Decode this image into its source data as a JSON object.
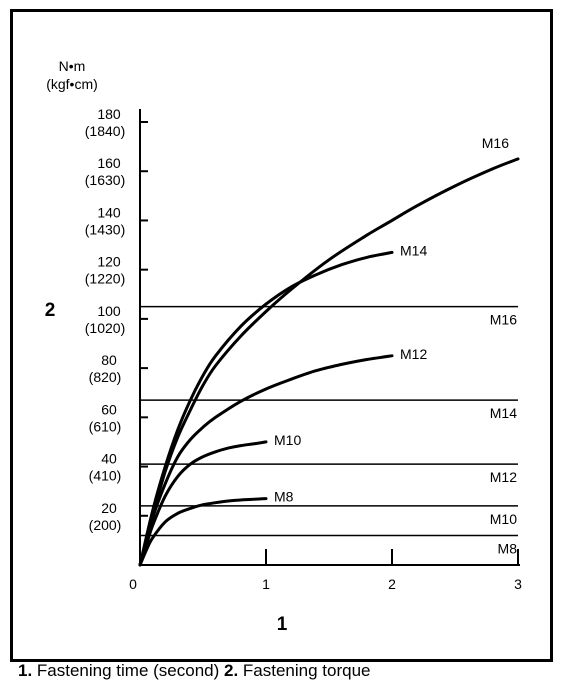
{
  "chart_data": {
    "type": "line",
    "y_unit": "N•m",
    "y_unit_alt": "(kgf•cm)",
    "y_axis_marker": "2",
    "x_axis_marker": "1",
    "xlim": [
      0,
      3
    ],
    "ylim": [
      0,
      180
    ],
    "x_ticks": [
      {
        "value": 0,
        "label": "0"
      },
      {
        "value": 1,
        "label": "1"
      },
      {
        "value": 2,
        "label": "2"
      },
      {
        "value": 3,
        "label": "3"
      }
    ],
    "y_ticks": [
      {
        "value": 20,
        "label": "20",
        "alt": "(200)"
      },
      {
        "value": 40,
        "label": "40",
        "alt": "(410)"
      },
      {
        "value": 60,
        "label": "60",
        "alt": "(610)"
      },
      {
        "value": 80,
        "label": "80",
        "alt": "(820)"
      },
      {
        "value": 100,
        "label": "100",
        "alt": "(1020)"
      },
      {
        "value": 120,
        "label": "120",
        "alt": "(1220)"
      },
      {
        "value": 140,
        "label": "140",
        "alt": "(1430)"
      },
      {
        "value": 160,
        "label": "160",
        "alt": "(1630)"
      },
      {
        "value": 180,
        "label": "180",
        "alt": "(1840)"
      }
    ],
    "series": [
      {
        "name": "M8",
        "x": [
          0,
          0.05,
          0.1,
          0.2,
          0.3,
          0.4,
          0.5,
          0.6,
          0.7,
          0.8,
          0.9,
          1.0
        ],
        "y": [
          0,
          6,
          11,
          17.5,
          21,
          23,
          24.5,
          25.3,
          26,
          26.4,
          26.7,
          27
        ]
      },
      {
        "name": "M10",
        "x": [
          0,
          0.05,
          0.1,
          0.2,
          0.3,
          0.4,
          0.5,
          0.6,
          0.7,
          0.8,
          0.9,
          1.0
        ],
        "y": [
          0,
          8,
          16,
          28,
          36,
          41,
          44,
          46,
          47.5,
          48.5,
          49.2,
          50
        ]
      },
      {
        "name": "M12",
        "x": [
          0,
          0.1,
          0.2,
          0.3,
          0.4,
          0.5,
          0.6,
          0.8,
          1.0,
          1.2,
          1.4,
          1.6,
          1.8,
          2.0
        ],
        "y": [
          0,
          19,
          33,
          44,
          51,
          56,
          60,
          66.5,
          71.5,
          75.5,
          79,
          81.5,
          83.5,
          85
        ]
      },
      {
        "name": "M14",
        "x": [
          0,
          0.1,
          0.2,
          0.3,
          0.4,
          0.5,
          0.6,
          0.8,
          1.0,
          1.2,
          1.4,
          1.6,
          1.8,
          2.0
        ],
        "y": [
          0,
          22,
          40,
          55,
          67,
          77,
          85,
          97,
          106,
          113,
          118,
          122,
          125,
          127
        ]
      },
      {
        "name": "M16",
        "x": [
          0,
          0.1,
          0.2,
          0.3,
          0.4,
          0.5,
          0.6,
          0.8,
          1.0,
          1.2,
          1.5,
          1.8,
          2.0,
          2.2,
          2.5,
          2.8,
          3.0
        ],
        "y": [
          0,
          20,
          38,
          52,
          63,
          73,
          81,
          93,
          103,
          112,
          124,
          134,
          140,
          146,
          154,
          161,
          165
        ]
      }
    ],
    "reference_lines": [
      {
        "name": "M16",
        "value": 105
      },
      {
        "name": "M14",
        "value": 67
      },
      {
        "name": "M12",
        "value": 41
      },
      {
        "name": "M10",
        "value": 24
      },
      {
        "name": "M8",
        "value": 12
      }
    ],
    "grid": false,
    "legend": "none"
  },
  "caption": {
    "marker_1": "1.",
    "text_1": " Fastening time (second) ",
    "marker_2": "2.",
    "text_2": " Fastening torque"
  }
}
